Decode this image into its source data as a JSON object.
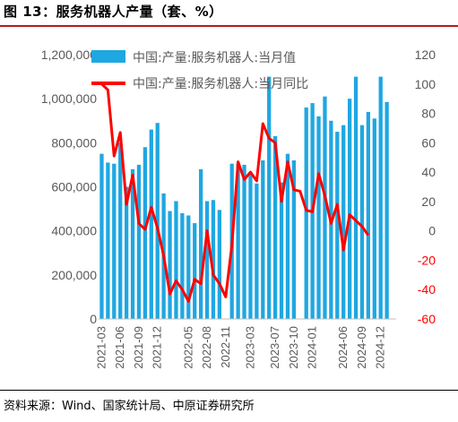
{
  "title": "图 13：服务机器人产量（套、%）",
  "source": "资料来源：Wind、国家统计局、中原证券研究所",
  "colors": {
    "bar": "#1fa7e1",
    "line": "#ff0000",
    "axis_text": "#595959",
    "title_rule": "#b01e1e"
  },
  "chart_data": {
    "type": "bar",
    "legend_position": "top-left-inside",
    "grid": false,
    "x": [
      "2021-03",
      "2021-04",
      "2021-05",
      "2021-06",
      "2021-07",
      "2021-08",
      "2021-09",
      "2021-10",
      "2021-11",
      "2021-12",
      "2022-01",
      "2022-02",
      "2022-03",
      "2022-04",
      "2022-05",
      "2022-06",
      "2022-07",
      "2022-08",
      "2022-09",
      "2022-10",
      "2022-11",
      "2022-12",
      "2023-01",
      "2023-02",
      "2023-03",
      "2023-04",
      "2023-05",
      "2023-06",
      "2023-07",
      "2023-08",
      "2023-09",
      "2023-10",
      "2023-11",
      "2023-12",
      "2024-01",
      "2024-02",
      "2024-03",
      "2024-04",
      "2024-05",
      "2024-06",
      "2024-07",
      "2024-08",
      "2024-09",
      "2024-10",
      "2024-11",
      "2024-12",
      "2025-01",
      "2025-02"
    ],
    "x_tick_labels": [
      "2021-03",
      "2021-06",
      "2021-09",
      "2021-12",
      "2022-05",
      "2022-08",
      "2022-11",
      "2023-03",
      "2023-07",
      "2023-10",
      "2024-01",
      "2024-06",
      "2024-09",
      "2024-12"
    ],
    "series": [
      {
        "name": "中国:产量:服务机器人:当月值",
        "type": "bar",
        "axis": "left",
        "values": [
          750000,
          710000,
          705000,
          800000,
          600000,
          680000,
          700000,
          780000,
          860000,
          890000,
          570000,
          490000,
          535000,
          480000,
          470000,
          435000,
          680000,
          535000,
          540000,
          495000,
          null,
          705000,
          705000,
          700000,
          660000,
          615000,
          720000,
          1100000,
          830000,
          620000,
          750000,
          720000,
          null,
          960000,
          980000,
          920000,
          1010000,
          900000,
          850000,
          880000,
          1000000,
          1100000,
          880000,
          940000,
          910000,
          1100000,
          985000,
          null
        ]
      },
      {
        "name": "中国:产量:服务机器人:当月同比",
        "type": "line",
        "axis": "right",
        "values": [
          100,
          96,
          51,
          67,
          18,
          38,
          5,
          1,
          16,
          2,
          -17,
          -43,
          -34,
          -40,
          -48,
          -33,
          -36,
          0,
          -30,
          -36,
          -45,
          -10,
          47,
          35,
          40,
          34,
          73,
          63,
          60,
          20,
          47,
          28,
          27,
          14,
          13,
          39,
          24,
          5,
          18,
          -13,
          11,
          7,
          3,
          -3,
          null,
          null,
          null,
          null
        ]
      }
    ],
    "y_left": {
      "ylim": [
        0,
        1200000
      ],
      "ticks": [
        "0",
        "200,000",
        "400,000",
        "600,000",
        "800,000",
        "1,000,000",
        "1,200,000"
      ]
    },
    "y_right": {
      "ylim": [
        -60,
        120
      ],
      "ticks": [
        "-60",
        "-40",
        "-20",
        "0",
        "20",
        "40",
        "60",
        "80",
        "100",
        "120"
      ]
    }
  }
}
